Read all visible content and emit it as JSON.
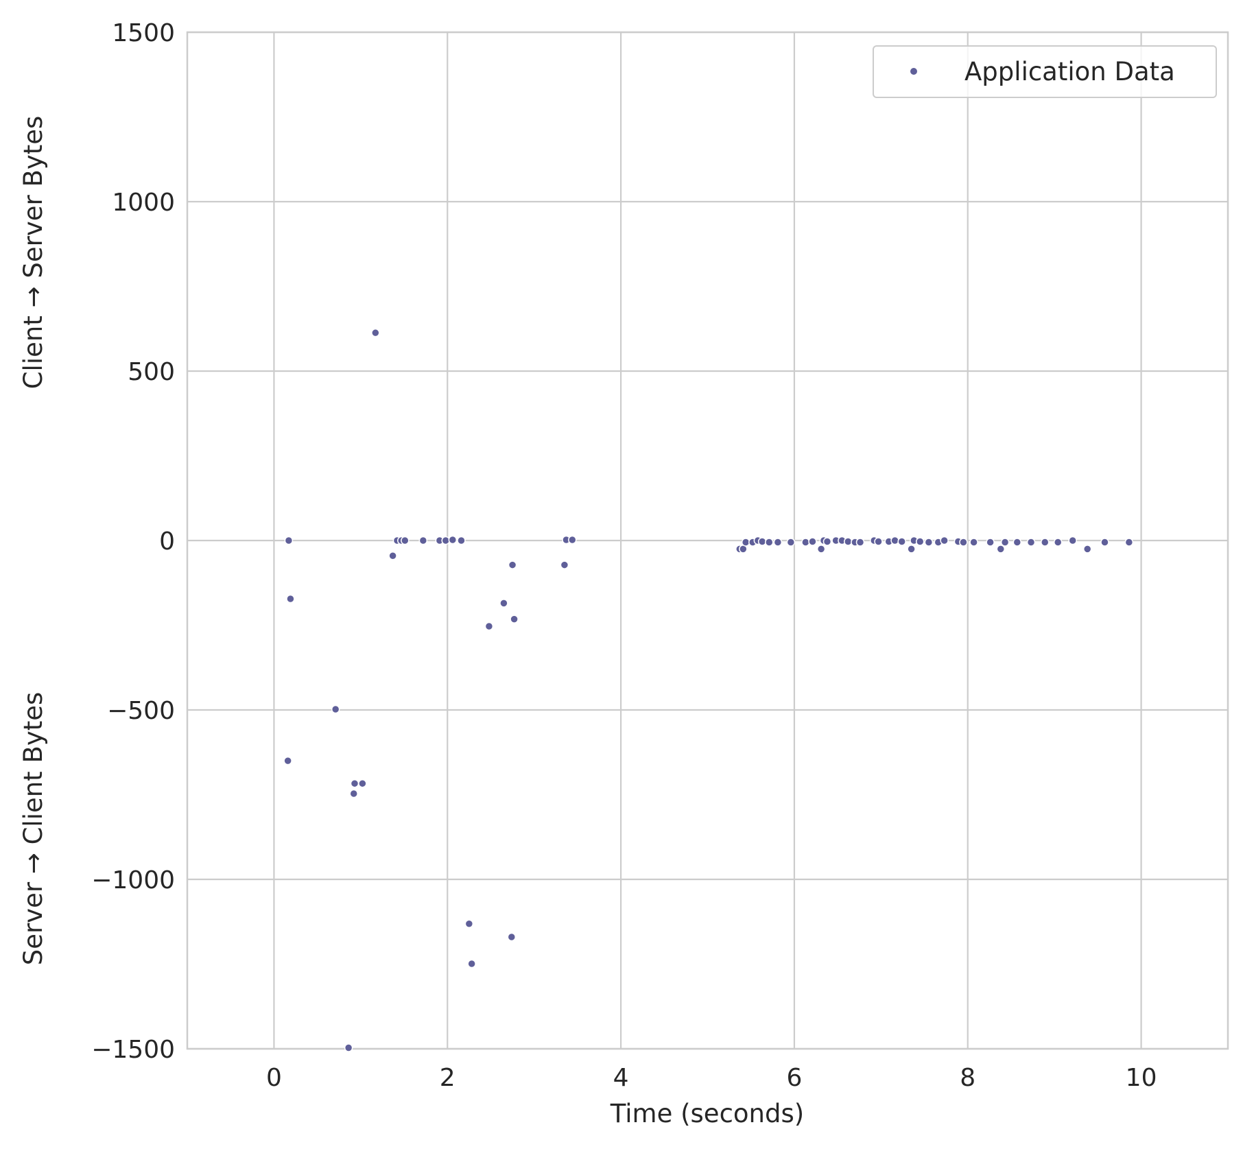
{
  "chart_data": {
    "type": "scatter",
    "xlabel": "Time (seconds)",
    "ylabel_top": "Client → Server Bytes",
    "ylabel_bottom": "Server → Client Bytes",
    "xlim": [
      -1,
      11
    ],
    "ylim": [
      -1500,
      1500
    ],
    "x_ticks": [
      0,
      2,
      4,
      6,
      8,
      10
    ],
    "y_ticks": [
      1500,
      1000,
      500,
      0,
      -500,
      -1000,
      -1500
    ],
    "y_tick_labels": [
      "1500",
      "1000",
      "500",
      "0",
      "−500",
      "−1000",
      "−1500"
    ],
    "grid": true,
    "legend": {
      "position": "top-right",
      "entries": [
        "Application Data"
      ]
    },
    "colors": {
      "point": "#5f5f99",
      "grid": "#cccccc",
      "text": "#262626"
    },
    "series": [
      {
        "name": "Application Data",
        "points": [
          [
            0.17,
            0
          ],
          [
            0.19,
            -172
          ],
          [
            0.16,
            -650
          ],
          [
            0.71,
            -498
          ],
          [
            0.93,
            -717
          ],
          [
            1.02,
            -717
          ],
          [
            0.92,
            -747
          ],
          [
            0.86,
            -1497
          ],
          [
            1.17,
            613
          ],
          [
            1.37,
            -45
          ],
          [
            1.42,
            0
          ],
          [
            1.47,
            0
          ],
          [
            1.51,
            0
          ],
          [
            1.72,
            0
          ],
          [
            1.91,
            0
          ],
          [
            1.98,
            0
          ],
          [
            2.06,
            2
          ],
          [
            2.16,
            0
          ],
          [
            2.25,
            -1131
          ],
          [
            2.28,
            -1249
          ],
          [
            2.48,
            -253
          ],
          [
            2.65,
            -185
          ],
          [
            2.75,
            -72
          ],
          [
            2.77,
            -232
          ],
          [
            2.74,
            -1170
          ],
          [
            3.35,
            -72
          ],
          [
            3.37,
            2
          ],
          [
            3.44,
            2
          ],
          [
            5.37,
            -25
          ],
          [
            5.41,
            -25
          ],
          [
            5.44,
            -5
          ],
          [
            5.52,
            -5
          ],
          [
            5.58,
            0
          ],
          [
            5.63,
            -3
          ],
          [
            5.71,
            -5
          ],
          [
            5.81,
            -5
          ],
          [
            5.96,
            -5
          ],
          [
            6.13,
            -5
          ],
          [
            6.21,
            -3
          ],
          [
            6.31,
            -25
          ],
          [
            6.34,
            0
          ],
          [
            6.38,
            -3
          ],
          [
            6.48,
            0
          ],
          [
            6.55,
            0
          ],
          [
            6.62,
            -3
          ],
          [
            6.7,
            -5
          ],
          [
            6.76,
            -5
          ],
          [
            6.92,
            0
          ],
          [
            6.97,
            -3
          ],
          [
            7.09,
            -3
          ],
          [
            7.16,
            0
          ],
          [
            7.24,
            -3
          ],
          [
            7.35,
            -25
          ],
          [
            7.38,
            0
          ],
          [
            7.45,
            -3
          ],
          [
            7.55,
            -5
          ],
          [
            7.66,
            -5
          ],
          [
            7.73,
            0
          ],
          [
            7.89,
            -3
          ],
          [
            7.95,
            -5
          ],
          [
            8.07,
            -5
          ],
          [
            8.26,
            -5
          ],
          [
            8.38,
            -25
          ],
          [
            8.43,
            -5
          ],
          [
            8.57,
            -5
          ],
          [
            8.73,
            -5
          ],
          [
            8.89,
            -5
          ],
          [
            9.04,
            -5
          ],
          [
            9.21,
            0
          ],
          [
            9.38,
            -25
          ],
          [
            9.58,
            -5
          ],
          [
            9.86,
            -5
          ]
        ]
      }
    ]
  }
}
